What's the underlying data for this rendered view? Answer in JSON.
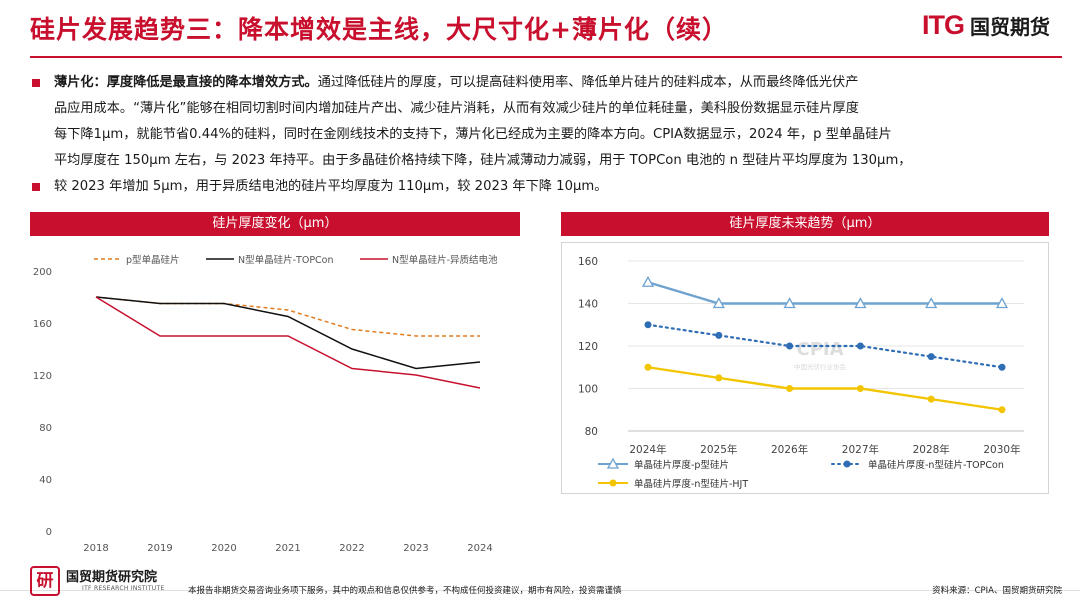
{
  "header": {
    "title": "硅片发展趋势三：降本增效是主线，大尺寸化+薄片化（续）",
    "brand_logo": "ITG",
    "brand_name": "国贸期货"
  },
  "body": {
    "lead": "薄片化：厚度降低是最直接的降本增效方式。",
    "lines": [
      "通过降低硅片的厚度，可以提高硅料使用率、降低单片硅片的硅料成本，从而最终降低光伏产",
      "品应用成本。“薄片化”能够在相同切割时间内增加硅片产出、减少硅片消耗，从而有效减少硅片的单位耗硅量，美科股份数据显示硅片厚度",
      "每下降1μm，就能节省0.44%的硅料，同时在金刚线技术的支持下，薄片化已经成为主要的降本方向。CPIA数据显示，2024 年，p 型单晶硅片",
      "平均厚度在 150μm 左右，与 2023 年持平。由于多晶硅价格持续下降，硅片减薄动力减弱，用于 TOPCon 电池的 n 型硅片平均厚度为 130μm，",
      "较 2023 年增加 5μm，用于异质结电池的硅片平均厚度为 110μm，较 2023 年下降 10μm。"
    ]
  },
  "chart_data": [
    {
      "type": "line",
      "title": "硅片厚度变化（μm）",
      "x": [
        "2018",
        "2019",
        "2020",
        "2021",
        "2022",
        "2023",
        "2024"
      ],
      "ylim": [
        0,
        200
      ],
      "yticks": [
        0,
        40,
        80,
        120,
        160,
        200
      ],
      "legend_position": "top",
      "series": [
        {
          "name": "p型单晶硅片",
          "style": "dashed",
          "color": "#e07b1f",
          "values": [
            180,
            175,
            175,
            170,
            155,
            150,
            150
          ]
        },
        {
          "name": "N型单晶硅片-TOPCon",
          "style": "solid",
          "color": "#111111",
          "values": [
            180,
            175,
            175,
            165,
            140,
            125,
            130
          ]
        },
        {
          "name": "N型单晶硅片-异质结电池",
          "style": "solid",
          "color": "#c8102e",
          "values": [
            180,
            150,
            150,
            150,
            125,
            120,
            110
          ]
        }
      ]
    },
    {
      "type": "line",
      "title": "硅片厚度未来趋势（μm）",
      "x": [
        "2024年",
        "2025年",
        "2026年",
        "2027年",
        "2028年",
        "2030年"
      ],
      "ylim": [
        80,
        160
      ],
      "yticks": [
        80,
        100,
        120,
        140,
        160
      ],
      "legend_position": "bottom",
      "watermark": "CPIA",
      "watermark_sub": "中国光伏行业协会",
      "series": [
        {
          "name": "单晶硅片厚度-p型硅片",
          "style": "solid-triangle",
          "color": "#6fa3cf",
          "values": [
            150,
            140,
            140,
            140,
            140,
            140
          ]
        },
        {
          "name": "单晶硅片厚度-n型硅片-TOPCon",
          "style": "dotted-circle",
          "color": "#2f6db5",
          "values": [
            130,
            125,
            120,
            120,
            115,
            110
          ]
        },
        {
          "name": "单晶硅片厚度-n型硅片-HJT",
          "style": "solid-circle",
          "color": "#f2c500",
          "values": [
            110,
            105,
            100,
            100,
            95,
            90
          ]
        }
      ]
    }
  ],
  "footer": {
    "logo_char": "研",
    "institute": "国贸期货研究院",
    "institute_en": "ITF RESEARCH INSTITUTE",
    "disclaimer": "本报告非期货交易咨询业务项下服务，其中的观点和信息仅供参考，不构成任何投资建议，期市有风险，投资需谨慎",
    "source": "资料来源：CPIA、国贸期货研究院"
  }
}
